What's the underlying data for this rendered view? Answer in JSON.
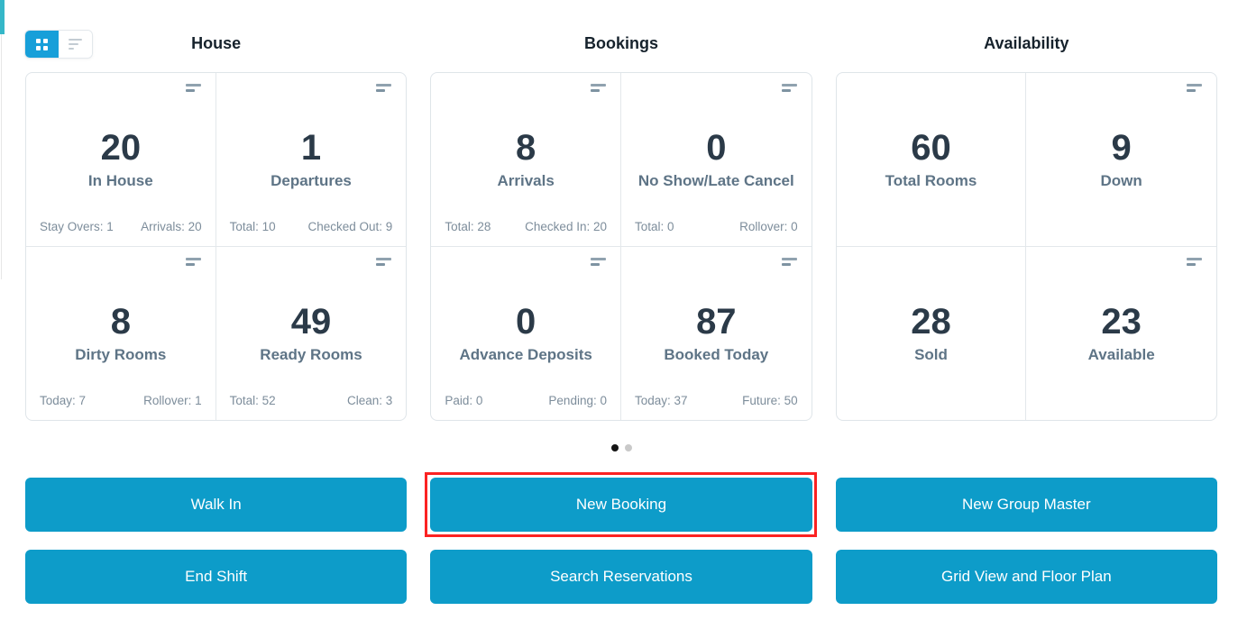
{
  "colors": {
    "primary_button": "#0d9cc9",
    "toggle_active": "#179fd9",
    "accent_teal": "#35b7c8",
    "highlight_red": "#fb2222",
    "value_text": "#2b3a48",
    "label_text": "#5e7486"
  },
  "view_toggle": {
    "grid_view_active": true,
    "list_view_active": false
  },
  "sections": [
    {
      "title": "House",
      "cards": [
        {
          "value": "20",
          "label": "In House",
          "stat_left": "Stay Overs: 1",
          "stat_right": "Arrivals: 20"
        },
        {
          "value": "1",
          "label": "Departures",
          "stat_left": "Total: 10",
          "stat_right": "Checked Out: 9"
        },
        {
          "value": "8",
          "label": "Dirty Rooms",
          "stat_left": "Today: 7",
          "stat_right": "Rollover: 1"
        },
        {
          "value": "49",
          "label": "Ready Rooms",
          "stat_left": "Total: 52",
          "stat_right": "Clean: 3"
        }
      ],
      "buttons": [
        "Walk In",
        "End Shift"
      ]
    },
    {
      "title": "Bookings",
      "cards": [
        {
          "value": "8",
          "label": "Arrivals",
          "stat_left": "Total: 28",
          "stat_right": "Checked In: 20"
        },
        {
          "value": "0",
          "label": "No Show/Late Cancel",
          "stat_left": "Total: 0",
          "stat_right": "Rollover: 0"
        },
        {
          "value": "0",
          "label": "Advance Deposits",
          "stat_left": "Paid: 0",
          "stat_right": "Pending: 0"
        },
        {
          "value": "87",
          "label": "Booked Today",
          "stat_left": "Today: 37",
          "stat_right": "Future: 50"
        }
      ],
      "buttons": [
        "New Booking",
        "Search Reservations"
      ],
      "highlighted_button": "New Booking"
    },
    {
      "title": "Availability",
      "cards": [
        {
          "value": "60",
          "label": "Total Rooms"
        },
        {
          "value": "9",
          "label": "Down"
        },
        {
          "value": "28",
          "label": "Sold"
        },
        {
          "value": "23",
          "label": "Available"
        }
      ],
      "buttons": [
        "New Group Master",
        "Grid View and Floor Plan"
      ]
    }
  ],
  "carousel": {
    "dot_count": 2,
    "active_index": 0
  }
}
